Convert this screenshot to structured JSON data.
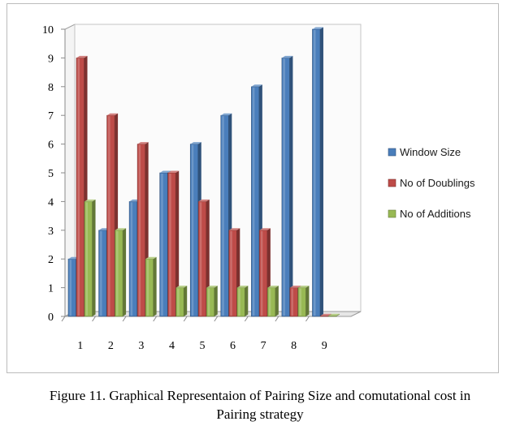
{
  "chart_data": {
    "type": "bar",
    "categories": [
      "1",
      "2",
      "3",
      "4",
      "5",
      "6",
      "7",
      "8",
      "9"
    ],
    "series": [
      {
        "name": "Window Size",
        "values": [
          2,
          3,
          4,
          5,
          6,
          7,
          8,
          9,
          10
        ],
        "color": "#4a7ebb"
      },
      {
        "name": "No of Doublings",
        "values": [
          9,
          7,
          6,
          5,
          4,
          3,
          3,
          1,
          0
        ],
        "color": "#be4b48"
      },
      {
        "name": "No of Additions",
        "values": [
          4,
          3,
          2,
          1,
          1,
          1,
          1,
          1,
          0
        ],
        "color": "#98b954"
      }
    ],
    "yticks": [
      "0",
      "1",
      "2",
      "3",
      "4",
      "5",
      "6",
      "7",
      "8",
      "9",
      "10"
    ],
    "ylim": [
      0,
      10
    ],
    "grid": false,
    "legend_position": "right",
    "chart_style": "3d-bars"
  },
  "caption": {
    "line1": "Figure 11. Graphical Representaion of Pairing Size and comutational cost in",
    "line2": "Pairing strategy"
  }
}
